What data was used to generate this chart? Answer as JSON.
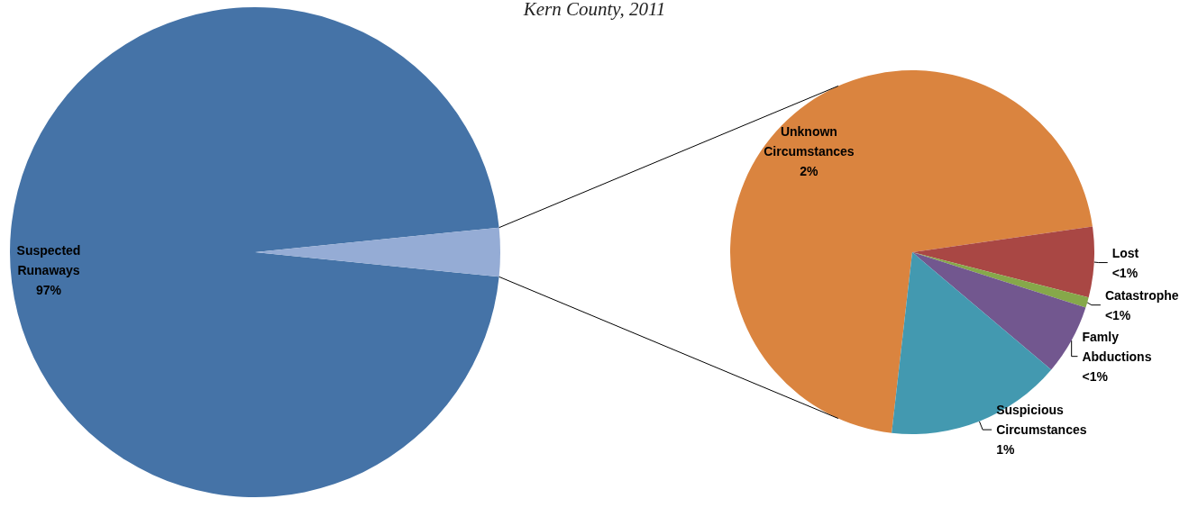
{
  "chart_data": [
    {
      "type": "pie",
      "title": "Kern County, 2011",
      "categories": [
        "Suspected Runaways",
        null
      ],
      "values": [
        96.8,
        3.2
      ],
      "colors": [
        "#4573a7",
        "#95acd5"
      ],
      "value_labels": [
        "97%",
        null
      ]
    },
    {
      "type": "pie",
      "categories": [
        "Unknown Circumstances",
        "Lost",
        "Catastrophe",
        "Famly Abductions",
        "Suspicious Circumstances"
      ],
      "values": [
        2.27,
        0.2,
        0.03,
        0.2,
        0.5
      ],
      "colors": [
        "#da843f",
        "#a94744",
        "#86a84a",
        "#72578f",
        "#4399b0"
      ],
      "value_labels": [
        "2%",
        "<1%",
        "<1%",
        "<1%",
        "1%"
      ]
    }
  ]
}
